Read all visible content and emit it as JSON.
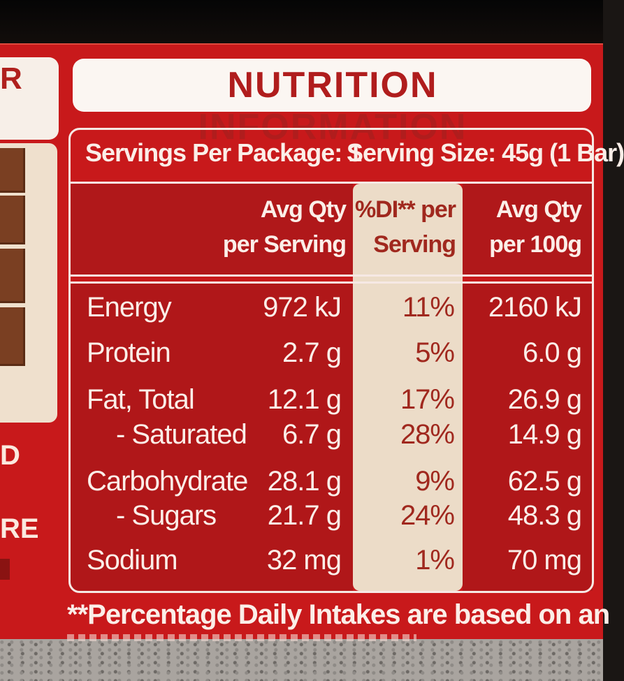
{
  "packaging": {
    "left_fragment_top": "R",
    "left_fragment_mid": "D",
    "left_fragment_bottom": "RE"
  },
  "title": "NUTRITION INFORMATION",
  "servings_per_package": "Servings Per Package: 1",
  "serving_size": "Serving Size: 45g (1 Bar)",
  "headers": {
    "per_serving": [
      "Avg Qty",
      "per Serving"
    ],
    "di_per_serving": [
      "%DI** per",
      "Serving"
    ],
    "per_100g": [
      "Avg Qty",
      "per 100g"
    ]
  },
  "rows": [
    {
      "name": "Energy",
      "per_serving": "972 kJ",
      "di": "11%",
      "per_100g": "2160 kJ"
    },
    {
      "name": "Protein",
      "per_serving": "2.7 g",
      "di": "5%",
      "per_100g": "6.0 g"
    },
    {
      "name": "Fat, Total",
      "per_serving": "12.1 g",
      "di": "17%",
      "per_100g": "26.9 g"
    },
    {
      "name": "- Saturated",
      "per_serving": "6.7 g",
      "di": "28%",
      "per_100g": "14.9 g"
    },
    {
      "name": "Carbohydrate",
      "per_serving": "28.1 g",
      "di": "9%",
      "per_100g": "62.5 g"
    },
    {
      "name": "- Sugars",
      "per_serving": "21.7 g",
      "di": "24%",
      "per_100g": "48.3 g"
    },
    {
      "name": "Sodium",
      "per_serving": "32 mg",
      "di": "1%",
      "per_100g": "70 mg"
    }
  ],
  "footnote": "**Percentage Daily Intakes are based on an",
  "colors": {
    "wrapper_red": "#c8191b",
    "label_cream": "#fbf6f2",
    "di_column": "#ecdcc8",
    "title_red": "#b01d1d"
  }
}
